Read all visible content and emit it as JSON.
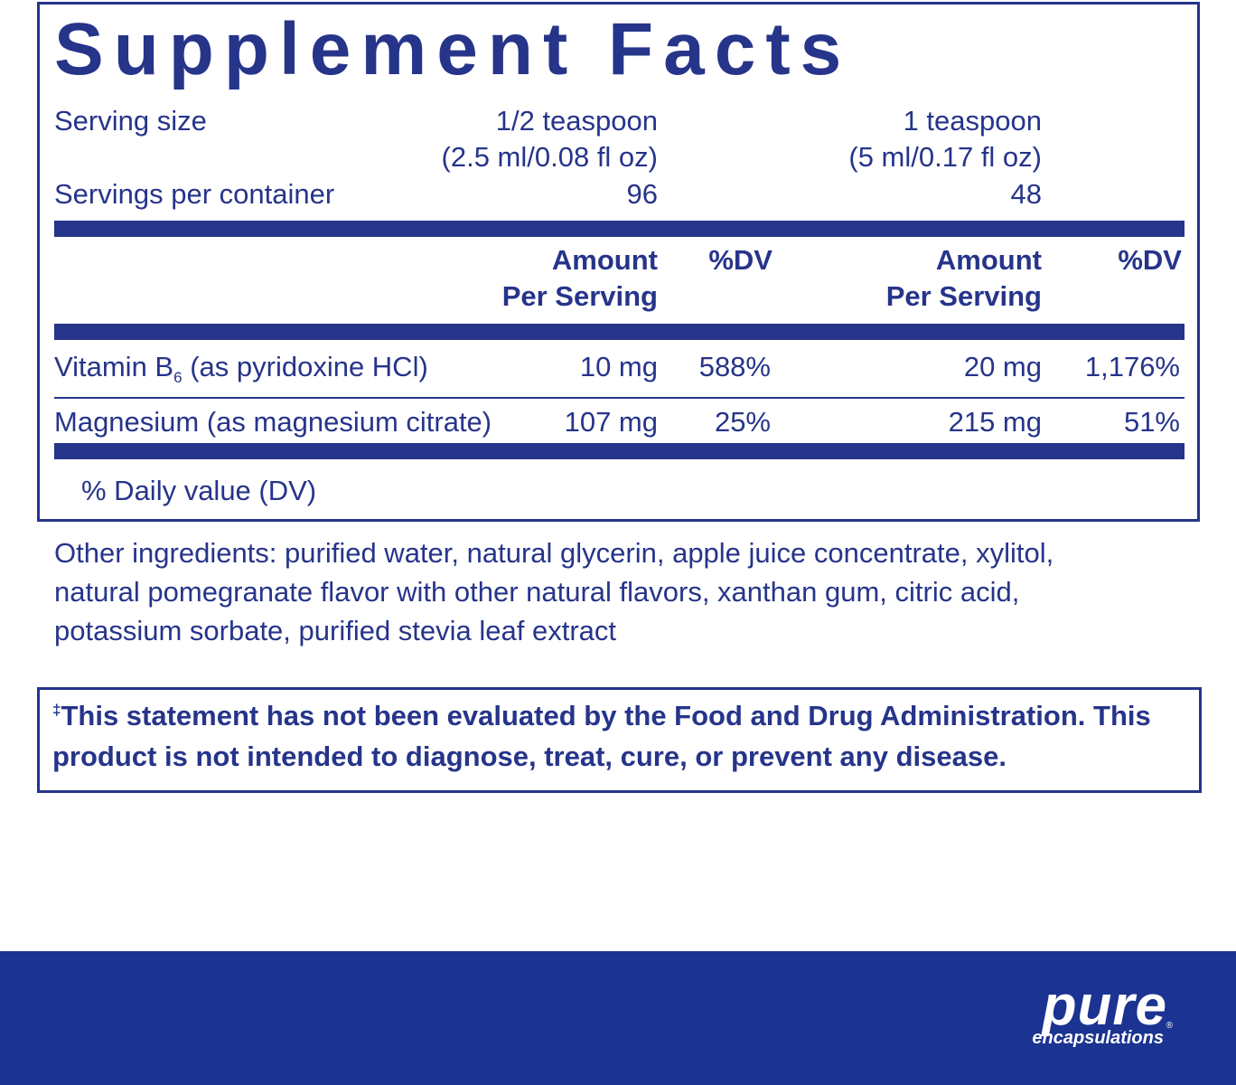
{
  "label": {
    "title": "Supplement Facts",
    "serving_size": {
      "label": "Serving size",
      "col1": [
        "1/2 teaspoon",
        "(2.5 ml/0.08 fl oz)"
      ],
      "col2": [
        "1 teaspoon",
        "(5 ml/0.17 fl oz)"
      ]
    },
    "servings_per_container": {
      "label": "Servings per container",
      "col1": "96",
      "col2": "48"
    },
    "header": {
      "amount": [
        "Amount",
        "Per Serving"
      ],
      "dv": "%DV"
    },
    "rows": [
      {
        "name": "Vitamin B",
        "subscript": "6",
        "name_rest": "(as pyridoxine HCl)",
        "amount1": "10 mg",
        "dv1": "588%",
        "amount2": "20 mg",
        "dv2": "1,176%"
      },
      {
        "name": "Magnesium (as magnesium citrate)",
        "amount1": "107 mg",
        "dv1": "25%",
        "amount2": "215 mg",
        "dv2": "51%"
      }
    ],
    "footnote": "% Daily value (DV)"
  },
  "other_ingredients": [
    "Other ingredients: purified water, natural glycerin, apple juice concentrate, xylitol,",
    "natural pomegranate flavor with other natural flavors, xanthan gum, citric acid,",
    "potassium sorbate, purified stevia leaf extract"
  ],
  "disclaimer": {
    "mark": "‡",
    "lines": [
      "This statement has not been evaluated by the Food and Drug Administration. This",
      "product is not intended to diagnose, treat, cure, or prevent any disease."
    ]
  },
  "brand": {
    "name": "pure",
    "sub": "encapsulations",
    "registered": "®"
  }
}
